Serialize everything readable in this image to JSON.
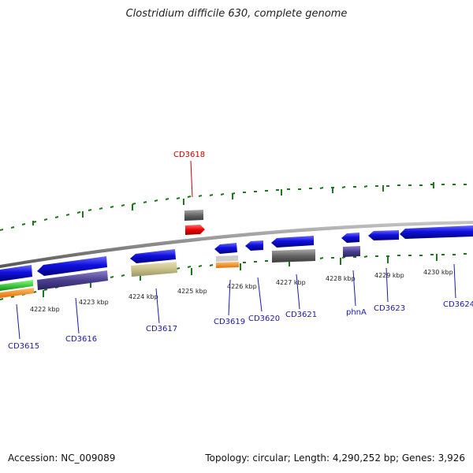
{
  "title": "Clostridium difficile 630, complete genome",
  "accession": "Accession: NC_009089",
  "topology": "Topology: circular; Length: 4,290,252 bp; Genes: 3,926",
  "ticks": [
    "4222 kbp",
    "4223 kbp",
    "4224 kbp",
    "4225 kbp",
    "4226 kbp",
    "4227 kbp",
    "4228 kbp",
    "4229 kbp",
    "4230 kbp"
  ],
  "genes": [
    "CD3615",
    "CD3616",
    "CD3617",
    "CD3618",
    "CD3619",
    "CD3620",
    "CD3621",
    "phnA",
    "CD3623",
    "CD3624"
  ],
  "colors": {
    "backbone": "#8a8a8a",
    "tick": "#1a7a1a",
    "cds": "#1010e0",
    "protein_dark": "#4a4090",
    "gray": "#666666",
    "khaki": "#c8c08a",
    "orange": "#ff8c00",
    "green": "#22cc22",
    "red": "#ee0000",
    "label_blue": "#1a1aaa",
    "label_red": "#cc0000"
  }
}
